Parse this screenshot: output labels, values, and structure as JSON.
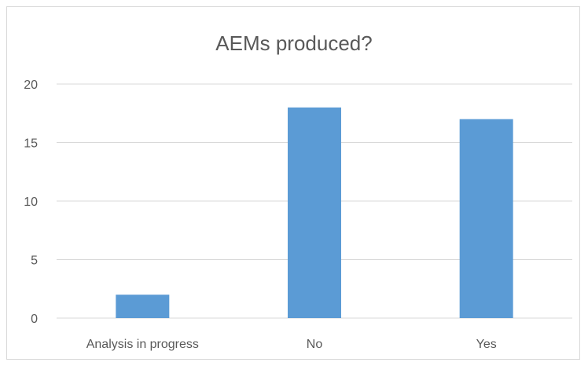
{
  "chart_data": {
    "type": "bar",
    "title": "AEMs produced?",
    "categories": [
      "Analysis in progress",
      "No",
      "Yes"
    ],
    "values": [
      2,
      18,
      17
    ],
    "xlabel": "",
    "ylabel": "",
    "ylim": [
      0,
      20
    ],
    "yticks": [
      0,
      5,
      10,
      15,
      20
    ],
    "grid": true,
    "legend": "none",
    "bar_color": "#5b9bd5",
    "grid_color": "#d9d9d9",
    "text_color": "#595959"
  }
}
